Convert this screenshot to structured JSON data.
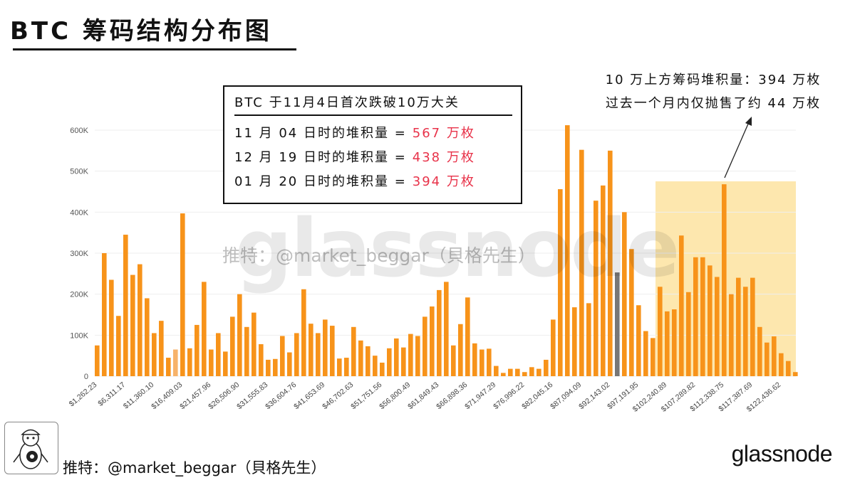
{
  "title": "BTC 筹码结构分布图",
  "info_box": {
    "heading": "BTC 于11月4日首次跌破10万大关",
    "rows": [
      {
        "label": "11 月 04 日时的堆积量 =",
        "value": "567 万枚"
      },
      {
        "label": "12 月 19 日时的堆积量 =",
        "value": "438 万枚"
      },
      {
        "label": "01 月 20 日时的堆积量 =",
        "value": "394 万枚"
      }
    ]
  },
  "annotation": {
    "line1": "10 万上方筹码堆积量：394 万枚",
    "line2": "过去一个月内仅抛售了约 44 万枚"
  },
  "watermark": "glassnode",
  "credit_watermark": "推特：@market_beggar（貝格先生）",
  "author_handle": "推特：@market_beggar（貝格先生）",
  "brand": "glassnode",
  "colors": {
    "bar": "#f7931a",
    "bar_light": "#f7b36a",
    "bar_current": "#777777",
    "highlight_zone": "#fde3a0",
    "value_red": "#e8334a",
    "grid": "#eeeeee"
  },
  "chart_data": {
    "type": "bar",
    "ylim": [
      0,
      600000
    ],
    "y_ticks": [
      0,
      100000,
      200000,
      300000,
      400000,
      500000,
      600000
    ],
    "y_tick_labels": [
      "0",
      "100K",
      "200K",
      "300K",
      "400K",
      "500K",
      "600K"
    ],
    "grid": true,
    "x_tick_labels": [
      "$1,262.23",
      "$6,311.17",
      "$11,360.10",
      "$16,409.03",
      "$21,457.96",
      "$26,506.90",
      "$31,555.83",
      "$36,604.76",
      "$41,653.69",
      "$46,702.63",
      "$51,751.56",
      "$56,800.49",
      "$61,849.43",
      "$66,898.36",
      "$71,947.29",
      "$76,996.22",
      "$82,045.16",
      "$87,094.09",
      "$92,143.02",
      "$97,191.95",
      "$102,240.89",
      "$107,289.82",
      "$112,338.75",
      "$117,387.69",
      "$122,436.62"
    ],
    "bars_per_tick": 4,
    "values": [
      75000,
      300000,
      235000,
      147000,
      345000,
      247000,
      273000,
      190000,
      105000,
      135000,
      45000,
      65000,
      397000,
      68000,
      125000,
      230000,
      65000,
      105000,
      60000,
      145000,
      200000,
      120000,
      155000,
      78000,
      40000,
      42000,
      98000,
      58000,
      105000,
      212000,
      128000,
      105000,
      138000,
      123000,
      43000,
      45000,
      120000,
      87000,
      73000,
      50000,
      33000,
      68000,
      92000,
      70000,
      103000,
      98000,
      145000,
      170000,
      210000,
      230000,
      75000,
      127000,
      192000,
      80000,
      65000,
      67000,
      25000,
      8000,
      18000,
      18000,
      10000,
      22000,
      18000,
      40000,
      138000,
      456000,
      612000,
      168000,
      552000,
      178000,
      428000,
      465000,
      550000,
      253000,
      400000,
      310000,
      173000,
      110000,
      93000,
      218000,
      158000,
      163000,
      343000,
      205000,
      290000,
      290000,
      270000,
      242000,
      468000,
      200000,
      240000,
      218000,
      240000,
      120000,
      82000,
      97000,
      56000,
      37000,
      10000
    ],
    "highlight_zone_start_index": 78,
    "light_bar_index": 11,
    "current_price_bar_index": 73
  }
}
